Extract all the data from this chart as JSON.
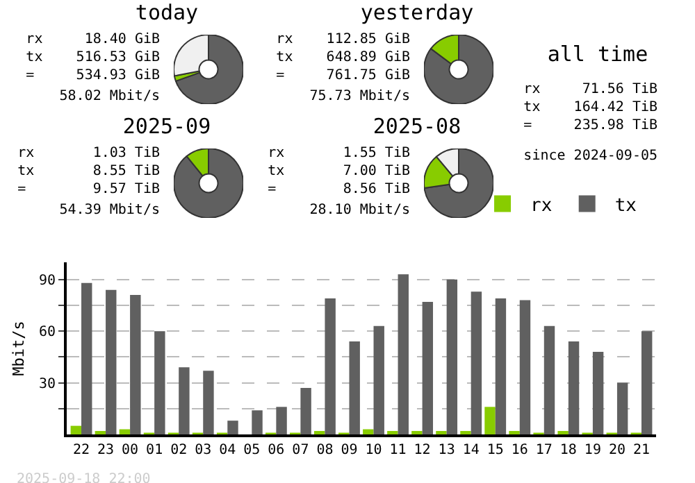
{
  "chart_data": [
    {
      "type": "donut",
      "title": "today",
      "categories": [
        null,
        null,
        null
      ],
      "values": [
        69.5,
        2.5,
        28
      ],
      "colors": [
        "#606060",
        "#88cc00",
        "#f0f0f0"
      ],
      "annotations": [
        "rx     18.40 GiB",
        "tx    516.53 GiB",
        "=     534.93 GiB",
        "58.02 Mbit/s"
      ]
    },
    {
      "type": "donut",
      "title": "yesterday",
      "categories": [
        null,
        null
      ],
      "values": [
        85.2,
        14.8
      ],
      "colors": [
        "#606060",
        "#88cc00"
      ],
      "annotations": [
        "rx    112.85 GiB",
        "tx    648.89 GiB",
        "=     761.75 GiB",
        "75.73 Mbit/s"
      ]
    },
    {
      "type": "other",
      "title": "all time",
      "annotations": [
        "rx     71.56 TiB",
        "tx    164.42 TiB",
        "=     235.98 TiB",
        "since 2024-09-05"
      ]
    },
    {
      "type": "donut",
      "title": "2025-09",
      "categories": [
        null,
        null
      ],
      "values": [
        89.2,
        10.8
      ],
      "colors": [
        "#606060",
        "#88cc00"
      ],
      "annotations": [
        "rx       1.03 TiB",
        "tx       8.55 TiB",
        "=        9.57 TiB",
        "54.39 Mbit/s"
      ]
    },
    {
      "type": "donut",
      "title": "2025-08",
      "categories": [
        null,
        null,
        null
      ],
      "values": [
        72.8,
        16.1,
        11.1
      ],
      "colors": [
        "#606060",
        "#88cc00",
        "#f0f0f0"
      ],
      "annotations": [
        "rx       1.55 TiB",
        "tx       7.00 TiB",
        "=        8.56 TiB",
        "28.10 Mbit/s"
      ]
    },
    {
      "type": "bar",
      "ylabel": "Mbit/s",
      "categories": [
        "22",
        "23",
        "00",
        "01",
        "02",
        "03",
        "04",
        "05",
        "06",
        "07",
        "08",
        "09",
        "10",
        "11",
        "12",
        "13",
        "14",
        "15",
        "16",
        "17",
        "18",
        "19",
        "20",
        "21"
      ],
      "series": [
        {
          "name": "rx",
          "color": "#88cc00",
          "values": [
            5,
            2,
            3,
            1,
            1,
            1,
            1,
            0,
            1,
            1,
            2,
            1,
            3,
            2,
            2,
            2,
            2,
            16,
            2,
            1,
            2,
            1,
            1,
            1
          ]
        },
        {
          "name": "tx",
          "color": "#606060",
          "values": [
            88,
            84,
            81,
            60,
            39,
            37,
            8,
            14,
            16,
            27,
            79,
            54,
            63,
            93,
            77,
            90,
            83,
            79,
            78,
            63,
            54,
            48,
            30,
            60
          ]
        }
      ],
      "ylim": [
        0,
        100
      ],
      "yticks": [
        {
          "value": 15,
          "label": null
        },
        30,
        {
          "value": 45,
          "label": null
        },
        60,
        {
          "value": 75,
          "label": null
        },
        90
      ],
      "grid": "y",
      "legend": "top right",
      "annotations": [
        "2025-09-18 22:00"
      ]
    }
  ]
}
